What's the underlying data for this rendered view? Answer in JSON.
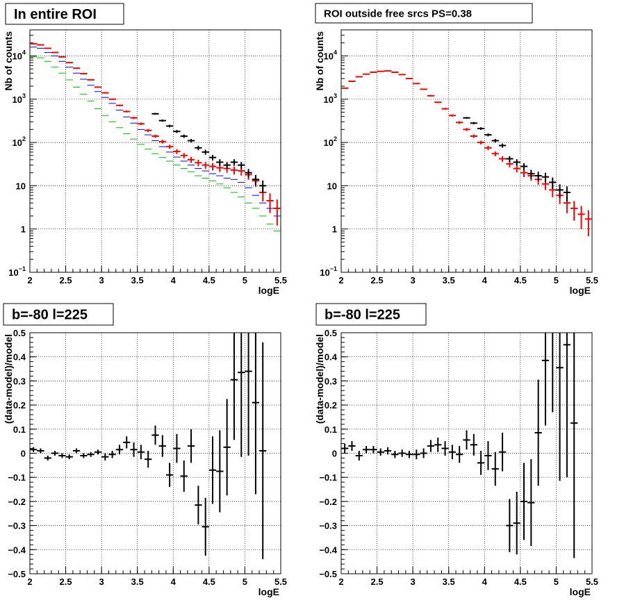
{
  "chart_data": [
    {
      "type": "scatter",
      "title": "In entire ROI",
      "xlabel": "logE",
      "ylabel": "Nb of counts",
      "xlim": [
        2,
        5.5
      ],
      "ylim": [
        0.1,
        40000
      ],
      "yscale": "log",
      "grid": true,
      "x_ticks": [
        "2",
        "2.5",
        "3",
        "3.5",
        "4",
        "4.5",
        "5",
        "5.5"
      ],
      "series": [
        {
          "color": "#ff0000",
          "x": [
            2.05,
            2.15,
            2.25,
            2.35,
            2.45,
            2.55,
            2.65,
            2.75,
            2.85,
            2.95,
            3.05,
            3.15,
            3.25,
            3.35,
            3.45,
            3.55,
            3.65,
            3.75,
            3.85,
            3.95,
            4.05,
            4.15,
            4.25,
            4.35,
            4.45,
            4.55,
            4.65,
            4.75,
            4.85,
            4.95,
            5.05,
            5.15,
            5.25,
            5.35,
            5.45
          ],
          "y": [
            19000,
            18000,
            15000,
            12000,
            9500,
            7000,
            5200,
            3900,
            2800,
            1900,
            1400,
            1000,
            720,
            520,
            370,
            270,
            190,
            140,
            105,
            80,
            62,
            50,
            40,
            34,
            30,
            28,
            26,
            25,
            23,
            22,
            18,
            13,
            7,
            4.5,
            3
          ],
          "err_rel": [
            0.03,
            0.03,
            0.03,
            0.03,
            0.03,
            0.03,
            0.03,
            0.03,
            0.03,
            0.03,
            0.03,
            0.03,
            0.04,
            0.05,
            0.06,
            0.07,
            0.08,
            0.09,
            0.1,
            0.11,
            0.13,
            0.14,
            0.16,
            0.17,
            0.18,
            0.19,
            0.2,
            0.2,
            0.21,
            0.22,
            0.24,
            0.28,
            0.38,
            0.48,
            0.6
          ]
        },
        {
          "color": "#0000ff",
          "x": [
            2.05,
            2.15,
            2.25,
            2.35,
            2.45,
            2.55,
            2.65,
            2.75,
            2.85,
            2.95,
            3.05,
            3.15,
            3.25,
            3.35,
            3.45,
            3.55,
            3.65,
            3.75,
            3.85,
            3.95,
            4.05,
            4.15,
            4.25,
            4.35,
            4.45,
            4.55,
            4.65,
            4.75,
            4.85,
            4.95,
            5.05,
            5.15,
            5.25,
            5.35,
            5.45
          ],
          "y": [
            16000,
            15000,
            12000,
            10000,
            7500,
            5500,
            4000,
            2900,
            2100,
            1500,
            1100,
            800,
            560,
            390,
            280,
            200,
            150,
            110,
            80,
            60,
            46,
            37,
            30,
            25,
            22,
            19,
            17,
            15,
            14,
            12,
            9,
            6,
            4,
            3,
            2
          ],
          "err_rel": [
            0,
            0,
            0,
            0,
            0,
            0,
            0,
            0,
            0,
            0,
            0,
            0,
            0,
            0,
            0,
            0,
            0,
            0,
            0,
            0,
            0,
            0,
            0,
            0,
            0,
            0,
            0,
            0,
            0,
            0,
            0,
            0,
            0,
            0,
            0
          ]
        },
        {
          "color": "#00bb00",
          "x": [
            2.05,
            2.15,
            2.25,
            2.35,
            2.45,
            2.55,
            2.65,
            2.75,
            2.85,
            2.95,
            3.05,
            3.15,
            3.25,
            3.35,
            3.45,
            3.55,
            3.65,
            3.75,
            3.85,
            3.95,
            4.05,
            4.15,
            4.25,
            4.35,
            4.45,
            4.55,
            4.65,
            4.75,
            4.85,
            4.95,
            5.05,
            5.15,
            5.25,
            5.35,
            5.45
          ],
          "y": [
            9500,
            9000,
            7500,
            5500,
            4000,
            2800,
            1900,
            1300,
            900,
            600,
            420,
            300,
            220,
            160,
            120,
            90,
            70,
            55,
            45,
            37,
            30,
            25,
            21,
            17,
            15,
            13,
            11,
            9,
            7,
            5.5,
            4,
            3,
            2,
            1.3,
            0.9
          ],
          "err_rel": [
            0,
            0,
            0,
            0,
            0,
            0,
            0,
            0,
            0,
            0,
            0,
            0,
            0,
            0,
            0,
            0,
            0,
            0,
            0,
            0,
            0,
            0,
            0,
            0,
            0,
            0,
            0,
            0,
            0,
            0,
            0,
            0,
            0,
            0,
            0
          ]
        },
        {
          "color": "#000000",
          "x": [
            3.75,
            3.85,
            3.95,
            4.05,
            4.15,
            4.25,
            4.35,
            4.45,
            4.55,
            4.65,
            4.75,
            4.85,
            4.95,
            5.05,
            5.15,
            5.25
          ],
          "y": [
            460,
            320,
            240,
            180,
            140,
            110,
            75,
            60,
            45,
            35,
            30,
            35,
            30,
            20,
            14,
            10
          ],
          "err_rel": [
            0.05,
            0.06,
            0.07,
            0.08,
            0.09,
            0.1,
            0.12,
            0.13,
            0.15,
            0.17,
            0.18,
            0.17,
            0.18,
            0.22,
            0.27,
            0.32
          ]
        }
      ]
    },
    {
      "type": "scatter",
      "title": "ROI outside free srcs PS=0.38",
      "xlabel": "logE",
      "ylabel": "Nb of counts",
      "xlim": [
        2,
        5.5
      ],
      "ylim": [
        0.1,
        40000
      ],
      "yscale": "log",
      "grid": true,
      "x_ticks": [
        "2",
        "2.5",
        "3",
        "3.5",
        "4",
        "4.5",
        "5",
        "5.5"
      ],
      "series": [
        {
          "color": "#ff0000",
          "x": [
            2.05,
            2.15,
            2.25,
            2.35,
            2.45,
            2.55,
            2.65,
            2.75,
            2.85,
            2.95,
            3.05,
            3.15,
            3.25,
            3.35,
            3.45,
            3.55,
            3.65,
            3.75,
            3.85,
            3.95,
            4.05,
            4.15,
            4.25,
            4.35,
            4.45,
            4.55,
            4.65,
            4.75,
            4.85,
            4.95,
            5.05,
            5.15,
            5.25,
            5.35,
            5.45
          ],
          "y": [
            1800,
            2600,
            3300,
            3800,
            4200,
            4400,
            4500,
            4200,
            3700,
            3000,
            2300,
            1700,
            1200,
            850,
            600,
            420,
            290,
            200,
            140,
            100,
            75,
            55,
            42,
            32,
            25,
            20,
            17,
            14,
            11,
            8,
            6,
            4,
            3,
            2.2,
            1.7
          ],
          "err_rel": [
            0.03,
            0.03,
            0.03,
            0.03,
            0.03,
            0.03,
            0.03,
            0.03,
            0.03,
            0.03,
            0.03,
            0.03,
            0.04,
            0.04,
            0.05,
            0.06,
            0.07,
            0.08,
            0.09,
            0.1,
            0.12,
            0.13,
            0.15,
            0.17,
            0.19,
            0.21,
            0.23,
            0.25,
            0.28,
            0.32,
            0.37,
            0.42,
            0.48,
            0.55,
            0.6
          ]
        },
        {
          "color": "#000000",
          "x": [
            3.75,
            3.85,
            3.95,
            4.05,
            4.15,
            4.25,
            4.35,
            4.45,
            4.55,
            4.65,
            4.75,
            4.85,
            4.95,
            5.05,
            5.15
          ],
          "y": [
            370,
            280,
            210,
            150,
            110,
            85,
            42,
            35,
            28,
            19,
            17,
            16,
            12,
            8,
            7
          ],
          "err_rel": [
            0.05,
            0.06,
            0.07,
            0.08,
            0.1,
            0.11,
            0.15,
            0.17,
            0.19,
            0.23,
            0.24,
            0.25,
            0.29,
            0.35,
            0.38
          ]
        }
      ]
    },
    {
      "type": "scatter",
      "title": "b=-80 l=225",
      "xlabel": "logE",
      "ylabel": "(data-model)/model",
      "xlim": [
        2,
        5.5
      ],
      "ylim": [
        -0.5,
        0.5
      ],
      "grid": true,
      "x_ticks": [
        "2",
        "2.5",
        "3",
        "3.5",
        "4",
        "4.5",
        "5",
        "5.5"
      ],
      "y_ticks": [
        "-0.5",
        "-0.4",
        "-0.3",
        "-0.2",
        "-0.1",
        "0",
        "0.1",
        "0.2",
        "0.3",
        "0.4",
        "0.5"
      ],
      "series": [
        {
          "color": "#000000",
          "x": [
            2.05,
            2.15,
            2.25,
            2.35,
            2.45,
            2.55,
            2.65,
            2.75,
            2.85,
            2.95,
            3.05,
            3.15,
            3.25,
            3.35,
            3.45,
            3.55,
            3.65,
            3.75,
            3.85,
            3.95,
            4.05,
            4.15,
            4.25,
            4.35,
            4.45,
            4.55,
            4.65,
            4.75,
            4.85,
            4.95,
            5.05,
            5.15,
            5.25
          ],
          "y": [
            0.015,
            0.01,
            -0.02,
            0.0,
            -0.01,
            -0.015,
            0.01,
            -0.01,
            -0.005,
            0.005,
            -0.015,
            -0.005,
            0.015,
            0.045,
            0.015,
            0.005,
            -0.025,
            0.075,
            0.03,
            -0.09,
            0.02,
            -0.095,
            0.03,
            -0.215,
            -0.305,
            -0.07,
            -0.075,
            0.025,
            0.305,
            0.335,
            0.34,
            0.21,
            0.01
          ],
          "yerr": [
            0.01,
            0.01,
            0.01,
            0.01,
            0.01,
            0.01,
            0.01,
            0.01,
            0.01,
            0.01,
            0.015,
            0.015,
            0.02,
            0.025,
            0.03,
            0.03,
            0.035,
            0.04,
            0.045,
            0.05,
            0.06,
            0.065,
            0.07,
            0.08,
            0.12,
            0.14,
            0.17,
            0.2,
            0.25,
            0.35,
            0.35,
            0.38,
            0.45
          ]
        }
      ]
    },
    {
      "type": "scatter",
      "title": "b=-80 l=225",
      "xlabel": "logE",
      "ylabel": "(data-model)/model",
      "xlim": [
        2,
        5.5
      ],
      "ylim": [
        -0.5,
        0.5
      ],
      "grid": true,
      "x_ticks": [
        "2",
        "2.5",
        "3",
        "3.5",
        "4",
        "4.5",
        "5",
        "5.5"
      ],
      "y_ticks": [
        "-0.5",
        "-0.4",
        "-0.3",
        "-0.2",
        "-0.1",
        "0",
        "0.1",
        "0.2",
        "0.3",
        "0.4",
        "0.5"
      ],
      "series": [
        {
          "color": "#000000",
          "x": [
            2.05,
            2.15,
            2.25,
            2.35,
            2.45,
            2.55,
            2.65,
            2.75,
            2.85,
            2.95,
            3.05,
            3.15,
            3.25,
            3.35,
            3.45,
            3.55,
            3.65,
            3.75,
            3.85,
            3.95,
            4.05,
            4.15,
            4.25,
            4.35,
            4.45,
            4.55,
            4.65,
            4.75,
            4.85,
            4.95,
            5.05,
            5.15,
            5.25
          ],
          "y": [
            0.02,
            0.03,
            -0.01,
            0.015,
            0.015,
            0.005,
            0.01,
            -0.005,
            0.0,
            -0.005,
            -0.005,
            0.0,
            0.03,
            0.035,
            0.02,
            0.005,
            -0.005,
            0.055,
            0.035,
            -0.04,
            -0.01,
            -0.065,
            0.005,
            -0.3,
            -0.29,
            -0.2,
            -0.205,
            0.085,
            0.385,
            0.52,
            0.355,
            0.45,
            0.125
          ],
          "yerr": [
            0.02,
            0.02,
            0.02,
            0.015,
            0.015,
            0.015,
            0.015,
            0.015,
            0.015,
            0.015,
            0.02,
            0.02,
            0.025,
            0.03,
            0.03,
            0.03,
            0.035,
            0.04,
            0.045,
            0.05,
            0.06,
            0.07,
            0.08,
            0.11,
            0.13,
            0.16,
            0.18,
            0.22,
            0.27,
            0.35,
            0.47,
            0.55,
            0.56
          ]
        }
      ]
    }
  ]
}
